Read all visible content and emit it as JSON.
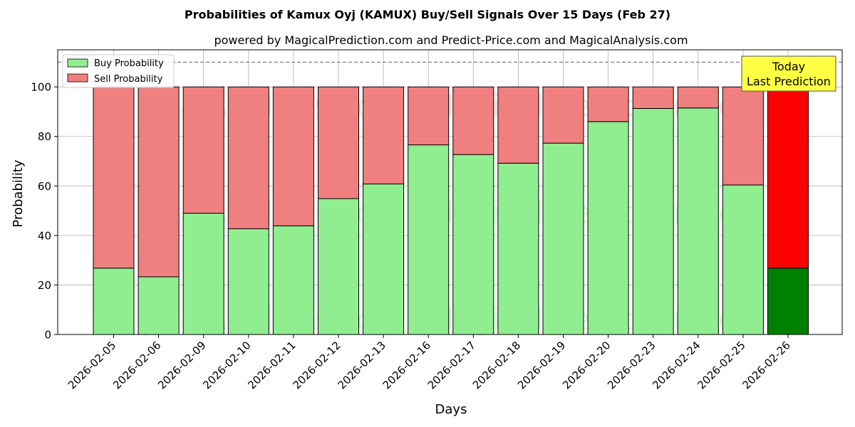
{
  "chart_data": {
    "type": "bar",
    "stacked": true,
    "title": "Probabilities of Kamux Oyj (KAMUX) Buy/Sell Signals Over 15 Days (Feb 27)",
    "subtitle": "powered by MagicalPrediction.com and Predict-Price.com and MagicalAnalysis.com",
    "xlabel": "Days",
    "ylabel": "Probability",
    "ylim": [
      0,
      115
    ],
    "yticks": [
      0,
      20,
      40,
      60,
      80,
      100
    ],
    "grid": true,
    "legend_position": "top-left",
    "reference_line": 110,
    "categories": [
      "2026-02-05",
      "2026-02-06",
      "2026-02-09",
      "2026-02-10",
      "2026-02-11",
      "2026-02-12",
      "2026-02-13",
      "2026-02-16",
      "2026-02-17",
      "2026-02-18",
      "2026-02-19",
      "2026-02-20",
      "2026-02-23",
      "2026-02-24",
      "2026-02-25",
      "2026-02-26"
    ],
    "series": [
      {
        "name": "Buy Probability",
        "color": "#90EE90",
        "values": [
          26.8,
          23.3,
          49.0,
          42.7,
          43.9,
          54.9,
          60.8,
          76.6,
          72.7,
          69.2,
          77.3,
          86.0,
          91.3,
          91.5,
          60.4,
          26.8
        ]
      },
      {
        "name": "Sell Probability",
        "color": "#F08080",
        "values": [
          73.2,
          76.7,
          51.0,
          57.3,
          56.1,
          45.1,
          39.2,
          23.4,
          27.3,
          30.8,
          22.7,
          14.0,
          8.7,
          8.5,
          39.6,
          73.2
        ]
      }
    ],
    "highlight": {
      "index": 15,
      "buy_color": "#008000",
      "sell_color": "#FF0000"
    },
    "annotation": {
      "lines": [
        "Today",
        "Last Prediction"
      ],
      "background": "#FFFF44"
    },
    "watermarks": [
      "MagicalAnalysis.com",
      "MagicalPrediction.com"
    ]
  }
}
